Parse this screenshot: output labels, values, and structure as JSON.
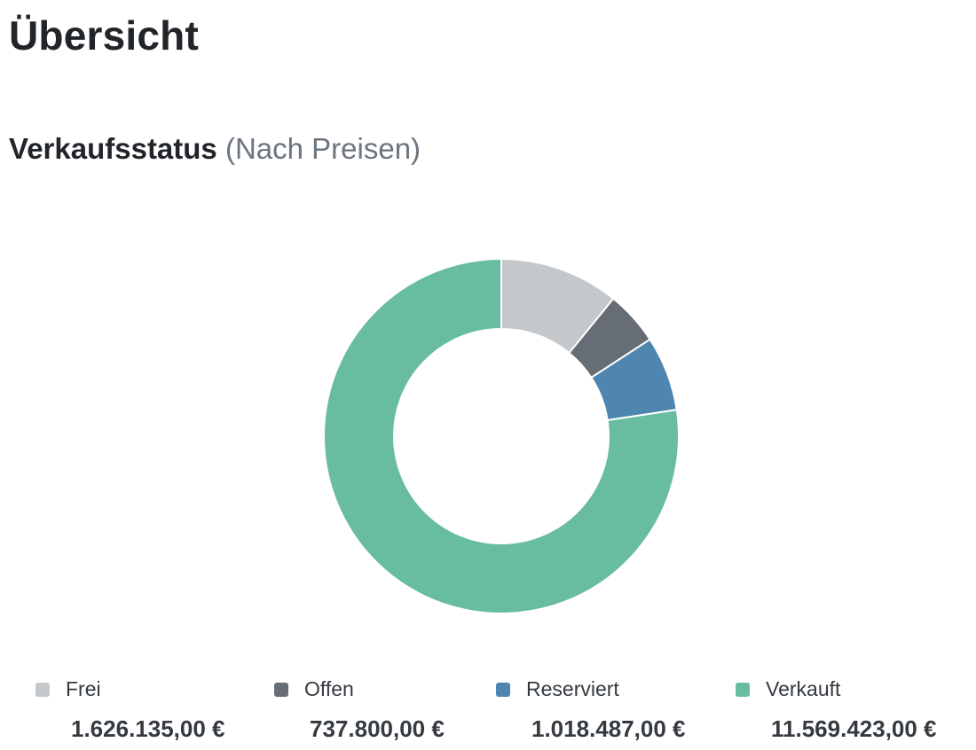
{
  "page": {
    "title": "Übersicht"
  },
  "section": {
    "title": "Verkaufsstatus",
    "subtitle": "(Nach Preisen)"
  },
  "chart_data": {
    "type": "pie",
    "variant": "donut",
    "title": "Verkaufsstatus",
    "subtitle": "(Nach Preisen)",
    "categories": [
      "Frei",
      "Offen",
      "Reserviert",
      "Verkauft"
    ],
    "values": [
      1626135.0,
      737800.0,
      1018487.0,
      11569423.0
    ],
    "value_labels": [
      "1.626.135,00 €",
      "737.800,00 €",
      "1.018.487,00 €",
      "11.569.423,00 €"
    ],
    "colors": [
      "#c4c8cb",
      "#666d75",
      "#4e86b0",
      "#68bca0"
    ],
    "legend_position": "bottom"
  }
}
